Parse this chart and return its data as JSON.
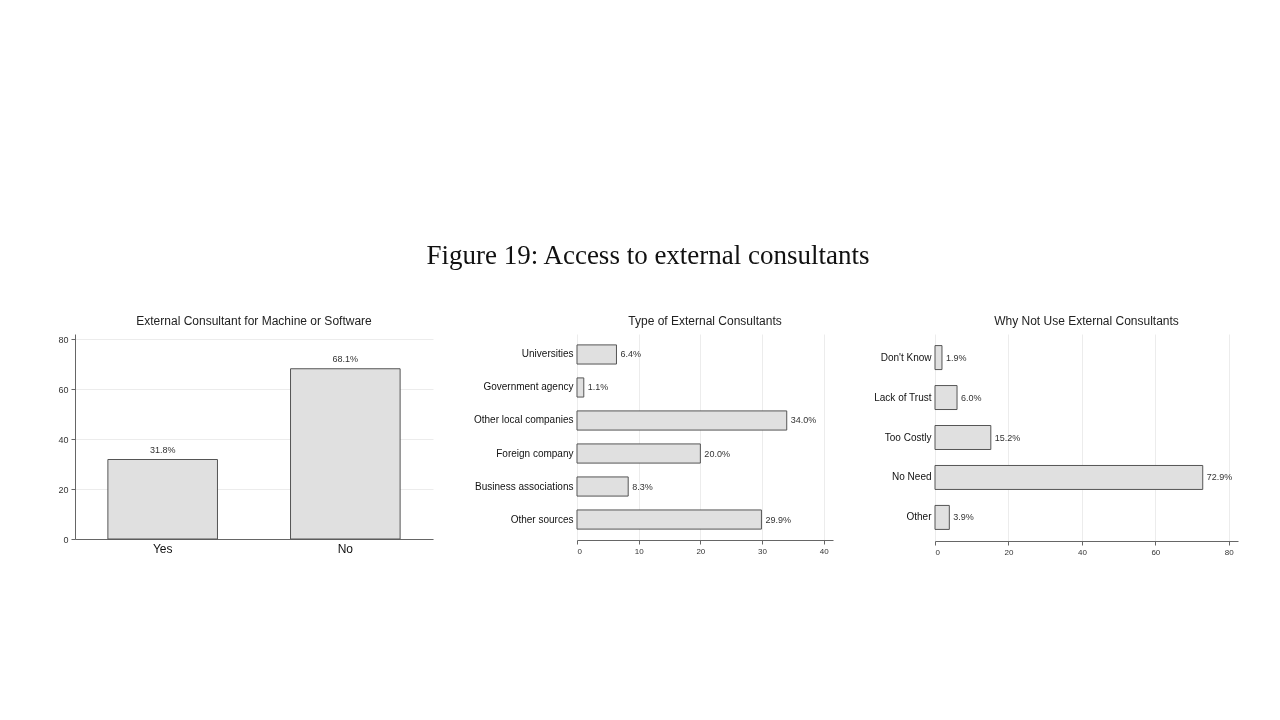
{
  "chart_data": [
    {
      "type": "other",
      "title": "Figure 19: Access to external consultants"
    },
    {
      "type": "bar",
      "title": "External Consultant for Machine or Software",
      "categories": [
        "Yes",
        "No"
      ],
      "values": [
        31.8,
        68.1
      ],
      "value_labels": [
        "31.8%",
        "68.1%"
      ],
      "color": "#e0e0e0",
      "ylim": [
        0,
        82
      ],
      "yticks": [
        0,
        20,
        40,
        60,
        80
      ],
      "grid": "y"
    },
    {
      "type": "bar",
      "orientation": "horizontal",
      "title": "Type of External Consultants",
      "categories": [
        "Universities",
        "Government agency",
        "Other local companies",
        "Foreign company",
        "Business associations",
        "Other sources"
      ],
      "values": [
        6.4,
        1.1,
        34.0,
        20.0,
        8.3,
        29.9
      ],
      "value_labels": [
        "6.4%",
        "1.1%",
        "34.0%",
        "20.0%",
        "8.3%",
        "29.9%"
      ],
      "color": "#e0e0e0",
      "xlim": [
        0,
        41.5
      ],
      "xticks": [
        0,
        10,
        20,
        30,
        40
      ],
      "grid": "x"
    },
    {
      "type": "bar",
      "orientation": "horizontal",
      "title": "Why Not Use External Consultants",
      "categories": [
        "Don't Know",
        "Lack of Trust",
        "Too Costly",
        "No Need",
        "Other"
      ],
      "values": [
        1.9,
        6.0,
        15.2,
        72.9,
        3.9
      ],
      "value_labels": [
        "1.9%",
        "6.0%",
        "15.2%",
        "72.9%",
        "3.9%"
      ],
      "color": "#e0e0e0",
      "xlim": [
        0,
        82.5
      ],
      "xticks": [
        0,
        20,
        40,
        60,
        80
      ],
      "grid": "x"
    }
  ]
}
